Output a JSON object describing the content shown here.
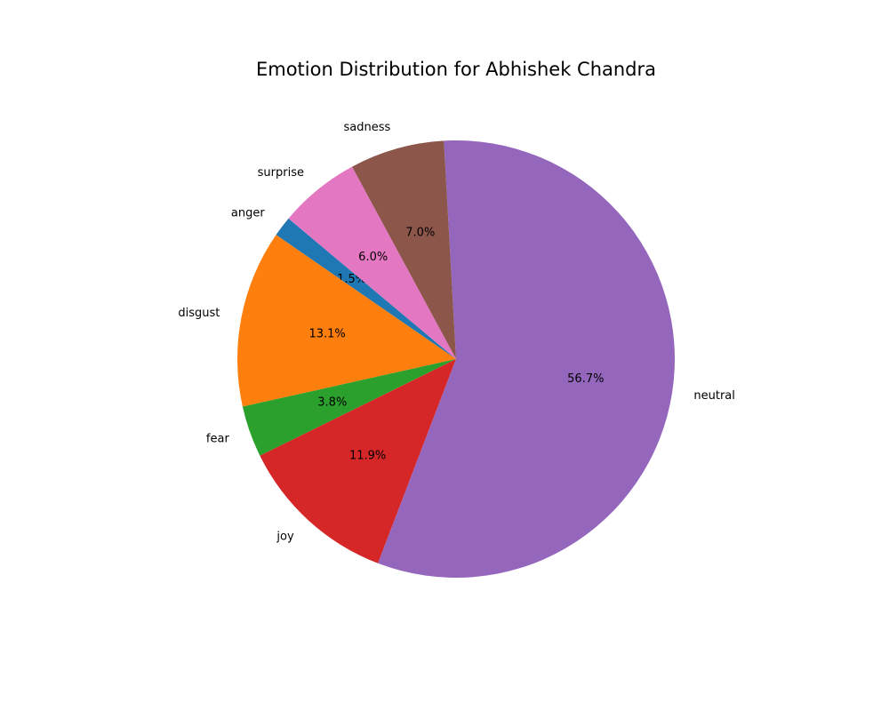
{
  "chart_data": {
    "type": "pie",
    "title": "Emotion Distribution for Abhishek Chandra",
    "start_angle_deg": 140,
    "direction": "counterclockwise",
    "slices": [
      {
        "label": "anger",
        "value": 1.5,
        "pct_label": "1.5%",
        "color": "#1f77b4"
      },
      {
        "label": "disgust",
        "value": 13.1,
        "pct_label": "13.1%",
        "color": "#ff7f0e"
      },
      {
        "label": "fear",
        "value": 3.8,
        "pct_label": "3.8%",
        "color": "#2ca02c"
      },
      {
        "label": "joy",
        "value": 11.9,
        "pct_label": "11.9%",
        "color": "#d62728"
      },
      {
        "label": "neutral",
        "value": 56.7,
        "pct_label": "56.7%",
        "color": "#9467bd"
      },
      {
        "label": "sadness",
        "value": 7.0,
        "pct_label": "7.0%",
        "color": "#8c564b"
      },
      {
        "label": "surprise",
        "value": 6.0,
        "pct_label": "6.0%",
        "color": "#e377c2"
      }
    ]
  }
}
